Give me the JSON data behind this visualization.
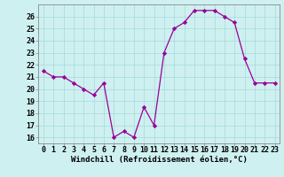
{
  "x": [
    0,
    1,
    2,
    3,
    4,
    5,
    6,
    7,
    8,
    9,
    10,
    11,
    12,
    13,
    14,
    15,
    16,
    17,
    18,
    19,
    20,
    21,
    22,
    23
  ],
  "y": [
    21.5,
    21.0,
    21.0,
    20.5,
    20.0,
    19.5,
    20.5,
    16.0,
    16.5,
    16.0,
    18.5,
    17.0,
    23.0,
    25.0,
    25.5,
    26.5,
    26.5,
    26.5,
    26.0,
    25.5,
    22.5,
    20.5,
    20.5,
    20.5
  ],
  "xlabel": "Windchill (Refroidissement éolien,°C)",
  "xlim": [
    -0.5,
    23.5
  ],
  "ylim": [
    15.5,
    27.0
  ],
  "yticks": [
    16,
    17,
    18,
    19,
    20,
    21,
    22,
    23,
    24,
    25,
    26
  ],
  "xticks": [
    0,
    1,
    2,
    3,
    4,
    5,
    6,
    7,
    8,
    9,
    10,
    11,
    12,
    13,
    14,
    15,
    16,
    17,
    18,
    19,
    20,
    21,
    22,
    23
  ],
  "line_color": "#990099",
  "marker": "D",
  "marker_size": 2.2,
  "bg_color": "#cff0f0",
  "grid_color": "#aadddd",
  "xlabel_fontsize": 6.5,
  "tick_fontsize": 6.0,
  "border_color": "#888888"
}
